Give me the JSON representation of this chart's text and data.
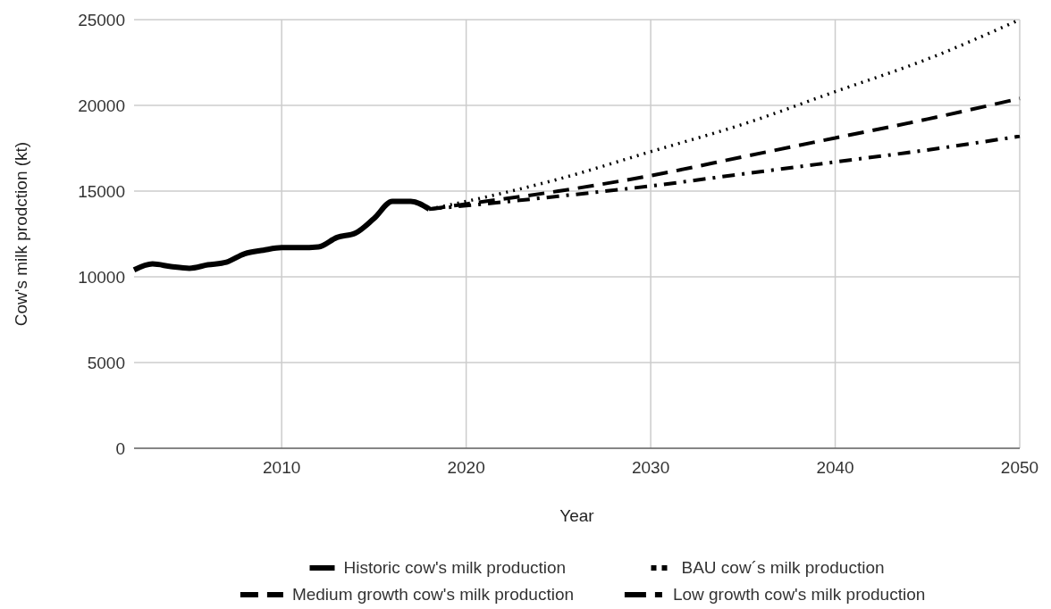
{
  "chart_data": {
    "type": "line",
    "xlabel": "Year",
    "ylabel": "Cow's milk prodction (kt)",
    "xlim": [
      2002,
      2050
    ],
    "xticks": [
      2010,
      2020,
      2030,
      2040,
      2050
    ],
    "ylim": [
      0,
      25000
    ],
    "yticks": [
      0,
      5000,
      10000,
      15000,
      20000,
      25000
    ],
    "grid": true,
    "legend": "bottom",
    "series": [
      {
        "name": "Historic cow's milk production",
        "color": "#000000",
        "line_style": "solid",
        "x": [
          2002,
          2003,
          2004,
          2005,
          2006,
          2007,
          2008,
          2009,
          2010,
          2011,
          2012,
          2013,
          2014,
          2015,
          2016,
          2017,
          2018
        ],
        "values": [
          10400,
          10750,
          10600,
          10500,
          10700,
          10850,
          11350,
          11550,
          11700,
          11700,
          11750,
          12300,
          12550,
          13400,
          14400,
          14400,
          13950
        ]
      },
      {
        "name": "BAU cow´s milk production",
        "color": "#000000",
        "line_style": "dotted",
        "x": [
          2018,
          2020,
          2025,
          2030,
          2035,
          2040,
          2045,
          2050
        ],
        "values": [
          13950,
          14400,
          15700,
          17300,
          18900,
          20800,
          22700,
          25000
        ]
      },
      {
        "name": "Medium growth cow's milk production",
        "color": "#000000",
        "line_style": "dashed",
        "x": [
          2018,
          2020,
          2025,
          2030,
          2035,
          2040,
          2045,
          2050
        ],
        "values": [
          13950,
          14250,
          15000,
          15900,
          17000,
          18100,
          19200,
          20400
        ]
      },
      {
        "name": "Low growth cow's milk production",
        "color": "#000000",
        "line_style": "dashdot",
        "x": [
          2018,
          2020,
          2025,
          2030,
          2035,
          2040,
          2045,
          2050
        ],
        "values": [
          13950,
          14150,
          14700,
          15300,
          16000,
          16700,
          17400,
          18200
        ]
      }
    ]
  }
}
